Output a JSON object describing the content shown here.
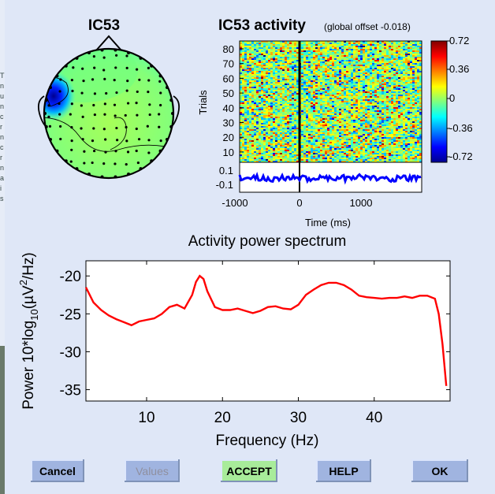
{
  "window": {
    "left_strip_text": [
      "T",
      "n",
      "u",
      "n",
      "c",
      "r",
      "n",
      "c",
      "r",
      "n",
      "a",
      "i",
      "s"
    ]
  },
  "topo": {
    "title": "IC53"
  },
  "erp": {
    "title": "IC53 activity",
    "subtitle": "(global offset -0.018)",
    "ylabel": "Trials",
    "trial_ticks": [
      "80",
      "70",
      "60",
      "50",
      "40",
      "30",
      "20",
      "10"
    ],
    "act_ticks": [
      "0.1",
      "-0.1"
    ],
    "x_ticks": [
      "-1000",
      "0",
      "1000"
    ],
    "xlabel": "Time (ms)",
    "colorbar_ticks": [
      "0.72",
      "0.36",
      "0",
      "-0.36",
      "-0.72"
    ],
    "colors": {
      "low": "#00008f",
      "mid": "#7fff7f",
      "high": "#800000",
      "trace": "#0000ff"
    }
  },
  "chart_data": {
    "type": "line",
    "title": "Activity power spectrum",
    "xlabel": "Frequency (Hz)",
    "ylabel": "Power 10*log10(µV²/Hz)",
    "ylabel_parts": {
      "main": "Power 10*log",
      "sub": "10",
      "paren_open": "(",
      "mu": "µ",
      "unit": "V",
      "sup": "2",
      "rest": "/Hz)"
    },
    "xlim": [
      2,
      50
    ],
    "ylim": [
      -36.5,
      -18
    ],
    "x_ticks": [
      "10",
      "20",
      "30",
      "40"
    ],
    "y_ticks": [
      "-20",
      "-25",
      "-30",
      "-35"
    ],
    "series": [
      {
        "name": "IC53",
        "color": "#ff0000",
        "x": [
          2,
          3,
          4,
          5,
          6,
          7,
          8,
          9,
          10,
          11,
          12,
          13,
          14,
          15,
          16,
          16.5,
          17,
          17.5,
          18,
          19,
          20,
          21,
          22,
          23,
          24,
          25,
          26,
          27,
          28,
          29,
          30,
          31,
          32,
          33,
          34,
          35,
          36,
          37,
          38,
          39,
          40,
          41,
          42,
          43,
          44,
          45,
          46,
          47,
          48,
          48.5,
          49,
          49.5
        ],
        "y": [
          -21.5,
          -23.5,
          -24.5,
          -25.2,
          -25.7,
          -26.1,
          -26.5,
          -26.0,
          -25.8,
          -25.6,
          -25.0,
          -24.1,
          -23.8,
          -24.3,
          -22.5,
          -20.8,
          -20.0,
          -20.4,
          -22.0,
          -24.1,
          -24.5,
          -24.5,
          -24.3,
          -24.6,
          -24.9,
          -24.6,
          -24.1,
          -24.0,
          -24.3,
          -24.4,
          -23.8,
          -22.5,
          -21.8,
          -21.2,
          -20.9,
          -20.9,
          -21.2,
          -21.8,
          -22.6,
          -22.8,
          -22.9,
          -23.0,
          -22.9,
          -22.9,
          -22.7,
          -22.9,
          -22.6,
          -22.6,
          -23.0,
          -25.0,
          -29.0,
          -34.5
        ]
      }
    ]
  },
  "buttons": {
    "cancel": "Cancel",
    "values": "Values",
    "accept": "ACCEPT",
    "help": "HELP",
    "ok": "OK"
  },
  "button_colors": {
    "normal": "#a0b4e0",
    "accept": "#a8ec9a",
    "values_text": "#8f8f9f"
  }
}
